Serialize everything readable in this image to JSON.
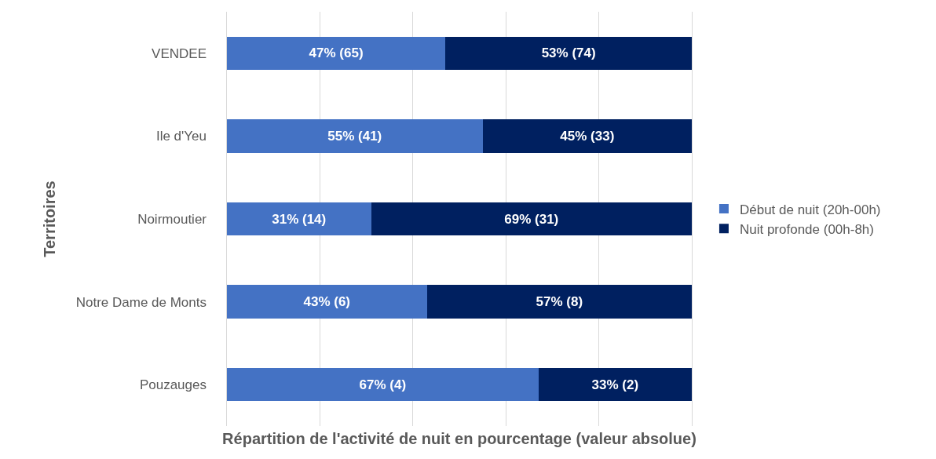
{
  "chart_data": {
    "type": "bar",
    "orientation": "horizontal",
    "stacked": true,
    "xlabel": "Répartition de l'activité de nuit en pourcentage (valeur absolue)",
    "ylabel": "Territoires",
    "categories": [
      "VENDEE",
      "Ile d'Yeu",
      "Noirmoutier",
      "Notre Dame de Monts",
      "Pouzauges"
    ],
    "series": [
      {
        "name": "Début de nuit (20h-00h)",
        "color": "#4472c4",
        "values": [
          47,
          55,
          31,
          43,
          67
        ],
        "value_labels": [
          "47% (65)",
          "55% (41)",
          "31% (14)",
          "43% (6)",
          "67% (4)"
        ]
      },
      {
        "name": "Nuit profonde (00h-8h)",
        "color": "#002060",
        "values": [
          53,
          45,
          69,
          57,
          33
        ],
        "value_labels": [
          "53% (74)",
          "45% (33)",
          "69% (31)",
          "57% (8)",
          "33% (2)"
        ]
      }
    ],
    "xlim": [
      -0.5,
      100.5
    ],
    "xticks": [
      {
        "value": 0,
        "label": null
      },
      {
        "value": 20,
        "label": null
      },
      {
        "value": 40,
        "label": null
      },
      {
        "value": 60,
        "label": null
      },
      {
        "value": 80,
        "label": null
      },
      {
        "value": 100,
        "label": null
      }
    ],
    "grid": "x",
    "legend": "right",
    "tick_labels": "y"
  }
}
